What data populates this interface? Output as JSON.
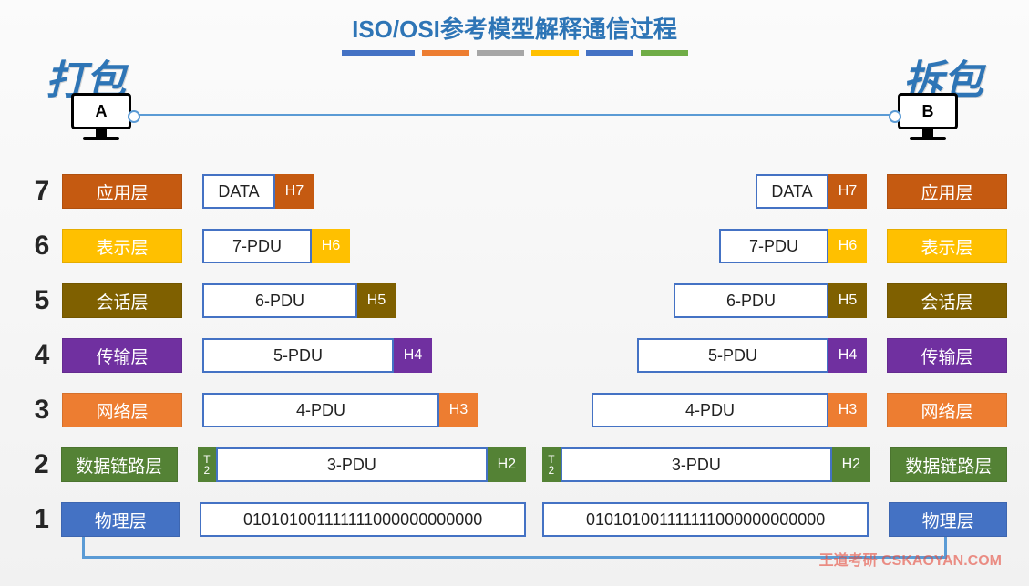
{
  "title": {
    "text": "ISO/OSI参考模型解释通信过程",
    "color": "#2e75b6"
  },
  "title_bars": [
    {
      "w": 80,
      "color": "#4472c4"
    },
    {
      "w": 52,
      "color": "#ed7d31"
    },
    {
      "w": 52,
      "color": "#a6a6a6"
    },
    {
      "w": 52,
      "color": "#ffc000"
    },
    {
      "w": 52,
      "color": "#4472c4"
    },
    {
      "w": 52,
      "color": "#6fac46"
    }
  ],
  "sides": {
    "pack": {
      "text": "打包",
      "color": "#2e75b6"
    },
    "unpack": {
      "text": "拆包",
      "color": "#2e75b6"
    },
    "host_a": "A",
    "host_b": "B"
  },
  "colors": {
    "border": "#4472c4",
    "l7": "#c55a11",
    "l6": "#ffc000",
    "l5": "#7f6000",
    "l4": "#7030a0",
    "l3": "#ed7d31",
    "l2": "#548235",
    "l1": "#4472c4"
  },
  "layers": [
    {
      "n": "7",
      "name": "应用层",
      "pdu": "DATA",
      "hdr": "H7",
      "color": "#c55a11",
      "pduW": 80,
      "trailer": ""
    },
    {
      "n": "6",
      "name": "表示层",
      "pdu": "7-PDU",
      "hdr": "H6",
      "color": "#ffc000",
      "pduW": 120,
      "trailer": ""
    },
    {
      "n": "5",
      "name": "会话层",
      "pdu": "6-PDU",
      "hdr": "H5",
      "color": "#7f6000",
      "pduW": 170,
      "trailer": ""
    },
    {
      "n": "4",
      "name": "传输层",
      "pdu": "5-PDU",
      "hdr": "H4",
      "color": "#7030a0",
      "pduW": 210,
      "trailer": ""
    },
    {
      "n": "3",
      "name": "网络层",
      "pdu": "4-PDU",
      "hdr": "H3",
      "color": "#ed7d31",
      "pduW": 260,
      "trailer": ""
    },
    {
      "n": "2",
      "name": "数据链路层",
      "pdu": "3-PDU",
      "hdr": "H2",
      "color": "#548235",
      "pduW": 298,
      "trailer": "T2"
    },
    {
      "n": "1",
      "name": "物理层",
      "pdu": "010101001111111000000000000",
      "hdr": "",
      "color": "#4472c4",
      "pduW": 358,
      "trailer": ""
    }
  ],
  "watermark": {
    "text": "王道考研 CSKAOYAN.COM",
    "color": "#e64a3b"
  }
}
